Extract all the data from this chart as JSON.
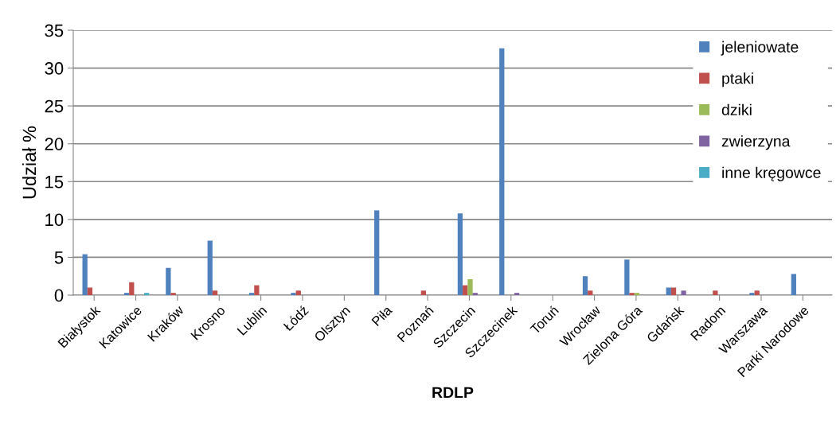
{
  "chart_data": {
    "type": "bar",
    "xlabel": "RDLP",
    "ylabel": "Udział %",
    "categories": [
      "Białystok",
      "Katowice",
      "Kraków",
      "Krosno",
      "Lublin",
      "Łódź",
      "Olsztyn",
      "Piła",
      "Poznań",
      "Szczecin",
      "Szczecinek",
      "Toruń",
      "Wrocław",
      "Zielona Góra",
      "Gdańsk",
      "Radom",
      "Warszawa",
      "Parki Narodowe"
    ],
    "series": [
      {
        "name": "jeleniowate",
        "color": "#4f81bd",
        "values": [
          5.4,
          0.3,
          3.6,
          7.2,
          0.3,
          0.3,
          0,
          11.2,
          0,
          10.8,
          32.6,
          0,
          2.5,
          4.7,
          1.0,
          0,
          0.3,
          2.8
        ]
      },
      {
        "name": "ptaki",
        "color": "#c0504d",
        "values": [
          1.0,
          1.7,
          0.3,
          0.6,
          1.3,
          0.6,
          0,
          0,
          0.6,
          1.3,
          0,
          0,
          0.6,
          0.3,
          1.0,
          0.6,
          0.6,
          0
        ]
      },
      {
        "name": "dziki",
        "color": "#9bbb59",
        "values": [
          0,
          0,
          0,
          0,
          0,
          0,
          0,
          0,
          0,
          2.1,
          0,
          0,
          0,
          0.3,
          0,
          0,
          0,
          0
        ]
      },
      {
        "name": "zwierzyna",
        "color": "#8064a2",
        "values": [
          0,
          0,
          0,
          0,
          0,
          0,
          0,
          0,
          0,
          0.3,
          0.3,
          0,
          0,
          0,
          0.6,
          0,
          0,
          0
        ]
      },
      {
        "name": "inne kręgowce",
        "color": "#4bacc6",
        "values": [
          0,
          0.3,
          0,
          0,
          0,
          0,
          0,
          0,
          0,
          0,
          0,
          0,
          0,
          0,
          0,
          0,
          0,
          0
        ]
      }
    ],
    "ylim": [
      0,
      35
    ],
    "yticks": [
      0,
      5,
      10,
      15,
      20,
      25,
      30,
      35
    ],
    "grid": "y",
    "legend": "right"
  }
}
